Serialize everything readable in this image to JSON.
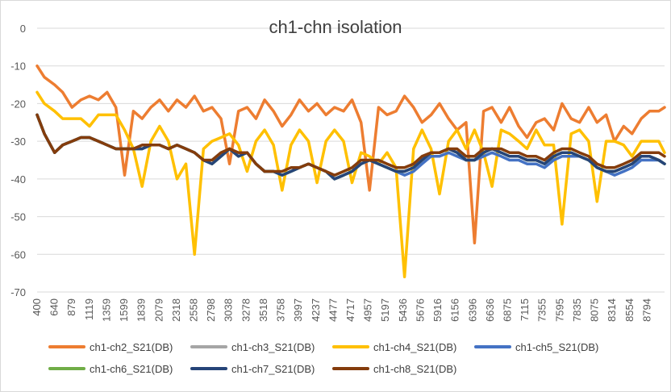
{
  "chart_data": {
    "type": "line",
    "title": "ch1-chn isolation",
    "xlabel": "",
    "ylabel": "",
    "ylim": [
      -70,
      0
    ],
    "yticks": [
      0,
      -10,
      -20,
      -30,
      -40,
      -50,
      -60,
      -70
    ],
    "xlim": [
      400,
      9000
    ],
    "xticks": [
      "400",
      "640",
      "879",
      "1119",
      "1359",
      "1599",
      "1839",
      "2079",
      "2318",
      "2558",
      "2798",
      "3038",
      "3278",
      "3518",
      "3758",
      "3997",
      "4237",
      "4477",
      "4717",
      "4957",
      "5197",
      "5436",
      "5676",
      "5916",
      "6156",
      "6396",
      "6636",
      "6875",
      "7115",
      "7355",
      "7595",
      "7835",
      "8075",
      "8314",
      "8554",
      "8794"
    ],
    "grid": "horizontal",
    "legend_position": "bottom",
    "x": [
      400,
      500,
      640,
      750,
      879,
      1000,
      1119,
      1240,
      1359,
      1480,
      1599,
      1720,
      1839,
      1960,
      2079,
      2200,
      2318,
      2440,
      2558,
      2680,
      2798,
      2920,
      3038,
      3160,
      3278,
      3400,
      3518,
      3640,
      3758,
      3880,
      3997,
      4120,
      4237,
      4360,
      4477,
      4600,
      4717,
      4840,
      4957,
      5080,
      5197,
      5320,
      5436,
      5560,
      5676,
      5800,
      5916,
      6040,
      6156,
      6280,
      6396,
      6520,
      6636,
      6760,
      6875,
      7000,
      7115,
      7240,
      7355,
      7480,
      7595,
      7720,
      7835,
      7960,
      8075,
      8200,
      8314,
      8440,
      8554,
      8680,
      8794,
      8920,
      9000
    ],
    "series": [
      {
        "name": "ch1-ch2_S21(DB)",
        "color": "#ED7D31",
        "values": [
          -10,
          -13,
          -15,
          -17,
          -21,
          -19,
          -18,
          -19,
          -17,
          -21,
          -39,
          -22,
          -24,
          -21,
          -19,
          -22,
          -19,
          -21,
          -18,
          -22,
          -21,
          -24,
          -36,
          -22,
          -21,
          -24,
          -19,
          -22,
          -26,
          -23,
          -19,
          -22,
          -20,
          -23,
          -21,
          -22,
          -19,
          -25,
          -43,
          -21,
          -23,
          -22,
          -18,
          -21,
          -25,
          -23,
          -20,
          -24,
          -27,
          -25,
          -57,
          -22,
          -21,
          -25,
          -21,
          -26,
          -29,
          -25,
          -24,
          -27,
          -20,
          -24,
          -25,
          -21,
          -25,
          -23,
          -30,
          -26,
          -28,
          -24,
          -22,
          -22,
          -21
        ]
      },
      {
        "name": "ch1-ch3_S21(DB)",
        "color": "#A5A5A5",
        "values": [
          -23,
          -28,
          -33,
          -31,
          -30,
          -29,
          -29,
          -30,
          -31,
          -32,
          -32,
          -32,
          -32,
          -31,
          -31,
          -32,
          -31,
          -32,
          -33,
          -35,
          -36,
          -34,
          -32,
          -34,
          -33,
          -36,
          -38,
          -38,
          -39,
          -38,
          -37,
          -36,
          -37,
          -38,
          -40,
          -39,
          -38,
          -36,
          -35,
          -36,
          -37,
          -38,
          -38,
          -37,
          -35,
          -33,
          -33,
          -32,
          -33,
          -35,
          -35,
          -33,
          -32,
          -33,
          -34,
          -34,
          -35,
          -35,
          -36,
          -34,
          -33,
          -33,
          -34,
          -35,
          -37,
          -38,
          -38,
          -37,
          -36,
          -34,
          -34,
          -35,
          -36
        ]
      },
      {
        "name": "ch1-ch4_S21(DB)",
        "color": "#FFC000",
        "values": [
          -17,
          -20,
          -22,
          -24,
          -24,
          -24,
          -26,
          -23,
          -23,
          -23,
          -27,
          -32,
          -42,
          -30,
          -26,
          -30,
          -40,
          -36,
          -60,
          -32,
          -30,
          -29,
          -28,
          -31,
          -38,
          -30,
          -27,
          -31,
          -43,
          -31,
          -27,
          -30,
          -41,
          -30,
          -27,
          -30,
          -41,
          -33,
          -34,
          -36,
          -33,
          -37,
          -66,
          -32,
          -27,
          -32,
          -44,
          -30,
          -27,
          -32,
          -27,
          -33,
          -42,
          -27,
          -28,
          -30,
          -32,
          -27,
          -31,
          -31,
          -52,
          -28,
          -27,
          -30,
          -46,
          -30,
          -30,
          -31,
          -34,
          -30,
          -30,
          -30,
          -33
        ]
      },
      {
        "name": "ch1-ch5_S21(DB)",
        "color": "#4472C4",
        "values": [
          -23,
          -28,
          -33,
          -31,
          -30,
          -29,
          -29,
          -30,
          -31,
          -32,
          -32,
          -32,
          -32,
          -31,
          -31,
          -32,
          -31,
          -32,
          -33,
          -35,
          -36,
          -34,
          -32,
          -34,
          -33,
          -36,
          -38,
          -38,
          -39,
          -38,
          -37,
          -36,
          -37,
          -38,
          -40,
          -39,
          -38,
          -36,
          -35,
          -36,
          -37,
          -38,
          -39,
          -38,
          -36,
          -34,
          -34,
          -33,
          -34,
          -35,
          -35,
          -34,
          -33,
          -34,
          -35,
          -35,
          -36,
          -36,
          -37,
          -35,
          -34,
          -34,
          -34,
          -35,
          -37,
          -38,
          -39,
          -38,
          -37,
          -35,
          -35,
          -35,
          -36
        ]
      },
      {
        "name": "ch1-ch6_S21(DB)",
        "color": "#70AD47",
        "values": [
          -23,
          -28,
          -33,
          -31,
          -30,
          -29,
          -29,
          -30,
          -31,
          -32,
          -32,
          -32,
          -32,
          -31,
          -31,
          -32,
          -31,
          -32,
          -33,
          -35,
          -36,
          -34,
          -32,
          -34,
          -33,
          -36,
          -38,
          -38,
          -39,
          -38,
          -37,
          -36,
          -37,
          -38,
          -40,
          -39,
          -38,
          -36,
          -35,
          -36,
          -37,
          -38,
          -38,
          -37,
          -35,
          -33,
          -33,
          -32,
          -33,
          -35,
          -35,
          -33,
          -32,
          -33,
          -34,
          -34,
          -35,
          -35,
          -36,
          -34,
          -33,
          -33,
          -34,
          -35,
          -37,
          -38,
          -38,
          -37,
          -36,
          -34,
          -34,
          -35,
          -36
        ]
      },
      {
        "name": "ch1-ch7_S21(DB)",
        "color": "#264478",
        "values": [
          -23,
          -28,
          -33,
          -31,
          -30,
          -29,
          -29,
          -30,
          -31,
          -32,
          -32,
          -32,
          -32,
          -31,
          -31,
          -32,
          -31,
          -32,
          -33,
          -35,
          -36,
          -34,
          -32,
          -34,
          -33,
          -36,
          -38,
          -38,
          -39,
          -38,
          -37,
          -36,
          -37,
          -38,
          -40,
          -39,
          -38,
          -36,
          -35,
          -36,
          -37,
          -38,
          -38,
          -37,
          -35,
          -33,
          -33,
          -32,
          -33,
          -35,
          -35,
          -33,
          -32,
          -33,
          -34,
          -34,
          -35,
          -35,
          -36,
          -34,
          -33,
          -33,
          -34,
          -35,
          -37,
          -38,
          -38,
          -37,
          -36,
          -34,
          -34,
          -35,
          -36
        ]
      },
      {
        "name": "ch1-ch8_S21(DB)",
        "color": "#843C0C",
        "values": [
          -23,
          -28,
          -33,
          -31,
          -30,
          -29,
          -29,
          -30,
          -31,
          -32,
          -32,
          -32,
          -31,
          -31,
          -31,
          -32,
          -31,
          -32,
          -33,
          -35,
          -35,
          -33,
          -32,
          -33,
          -33,
          -36,
          -38,
          -38,
          -38,
          -37,
          -37,
          -36,
          -37,
          -38,
          -39,
          -38,
          -37,
          -35,
          -35,
          -35,
          -36,
          -37,
          -37,
          -36,
          -34,
          -33,
          -33,
          -32,
          -32,
          -34,
          -34,
          -32,
          -32,
          -32,
          -33,
          -33,
          -34,
          -34,
          -35,
          -33,
          -32,
          -32,
          -33,
          -34,
          -36,
          -37,
          -37,
          -36,
          -35,
          -33,
          -33,
          -33,
          -34
        ]
      }
    ]
  }
}
